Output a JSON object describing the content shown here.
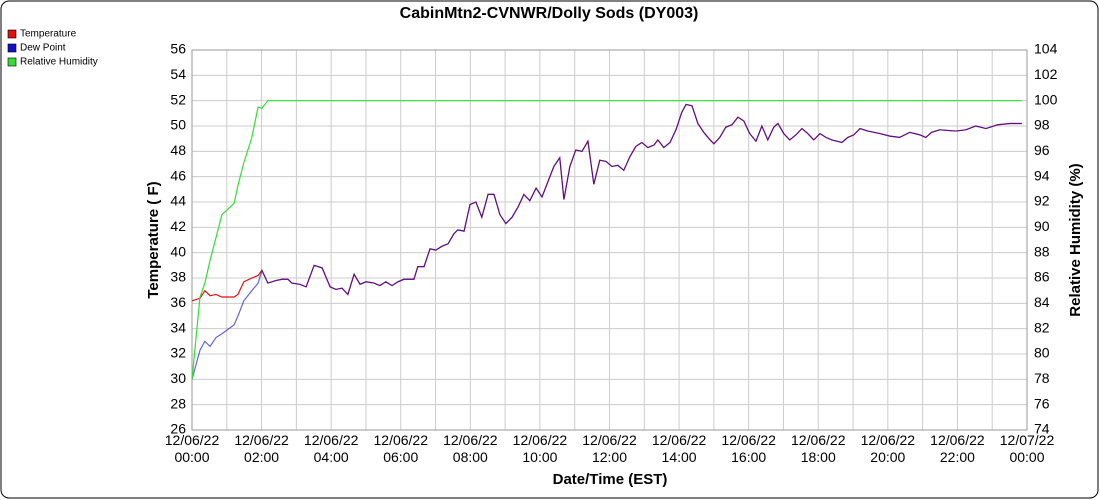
{
  "chart_data": {
    "type": "line",
    "title": "CabinMtn2-CVNWR/Dolly Sods (DY003)",
    "xlabel": "Date/Time (EST)",
    "ylabel": "Temperature ( F)",
    "y2label": "Relative Humidity (%)",
    "x": [
      0,
      0.23,
      0.37,
      0.52,
      0.69,
      0.86,
      1.21,
      1.32,
      1.49,
      1.72,
      1.9,
      2.01,
      2.18,
      2.41,
      2.59,
      2.76,
      2.87,
      3.1,
      3.28,
      3.51,
      3.74,
      3.97,
      4.14,
      4.31,
      4.48,
      4.66,
      4.83,
      5.0,
      5.23,
      5.4,
      5.57,
      5.75,
      5.92,
      6.09,
      6.38,
      6.49,
      6.67,
      6.84,
      7.01,
      7.18,
      7.36,
      7.53,
      7.64,
      7.82,
      7.99,
      8.16,
      8.33,
      8.51,
      8.68,
      8.85,
      9.02,
      9.2,
      9.37,
      9.54,
      9.71,
      9.89,
      10.06,
      10.23,
      10.4,
      10.57,
      10.69,
      10.86,
      11.03,
      11.21,
      11.38,
      11.55,
      11.72,
      11.9,
      12.07,
      12.24,
      12.41,
      12.59,
      12.76,
      12.93,
      13.1,
      13.28,
      13.39,
      13.56,
      13.74,
      13.91,
      14.08,
      14.2,
      14.37,
      14.54,
      14.71,
      14.89,
      15.0,
      15.17,
      15.34,
      15.52,
      15.69,
      15.86,
      16.03,
      16.21,
      16.38,
      16.55,
      16.72,
      16.84,
      17.01,
      17.18,
      17.36,
      17.53,
      17.7,
      17.87,
      18.05,
      18.22,
      18.39,
      18.68,
      18.85,
      19.02,
      19.2,
      19.43,
      19.77,
      20.06,
      20.34,
      20.63,
      20.92,
      21.09,
      21.26,
      21.49,
      21.95,
      22.24,
      22.53,
      22.82,
      23.16,
      23.51,
      23.85
    ],
    "series": [
      {
        "name": "Temperature",
        "color": "#dd1111",
        "values": [
          36.2,
          36.4,
          37.0,
          36.6,
          36.7,
          36.5,
          36.5,
          36.7,
          37.7,
          38.0,
          38.2,
          38.6,
          37.6,
          37.8,
          37.9,
          37.9,
          37.6,
          37.5,
          37.3,
          39.0,
          38.8,
          37.3,
          37.1,
          37.2,
          36.7,
          38.3,
          37.5,
          37.7,
          37.6,
          37.4,
          37.7,
          37.4,
          37.7,
          37.9,
          37.9,
          38.9,
          38.9,
          40.3,
          40.2,
          40.5,
          40.7,
          41.5,
          41.8,
          41.7,
          43.8,
          44.0,
          42.8,
          44.6,
          44.6,
          43.0,
          42.3,
          42.8,
          43.6,
          44.6,
          44.1,
          45.1,
          44.4,
          45.6,
          46.8,
          47.5,
          44.2,
          46.8,
          48.1,
          48.0,
          48.8,
          45.4,
          47.3,
          47.2,
          46.8,
          46.9,
          46.5,
          47.6,
          48.4,
          48.7,
          48.3,
          48.5,
          48.9,
          48.3,
          48.7,
          49.7,
          51.1,
          51.7,
          51.6,
          50.2,
          49.5,
          48.9,
          48.6,
          49.1,
          49.9,
          50.1,
          50.7,
          50.4,
          49.4,
          48.8,
          50.0,
          48.9,
          49.9,
          50.2,
          49.4,
          48.9,
          49.3,
          49.8,
          49.4,
          48.9,
          49.4,
          49.1,
          48.9,
          48.7,
          49.1,
          49.3,
          49.8,
          49.6,
          49.4,
          49.2,
          49.1,
          49.5,
          49.3,
          49.1,
          49.5,
          49.7,
          49.6,
          49.7,
          50.0,
          49.8,
          50.1,
          50.2,
          50.2
        ]
      },
      {
        "name": "Dew Point",
        "color": "#1111cc",
        "values": [
          30.0,
          32.3,
          33.0,
          32.6,
          33.3,
          33.6,
          34.3,
          35.0,
          36.2,
          37.0,
          37.6,
          38.6,
          37.6,
          37.8,
          37.9,
          37.9,
          37.6,
          37.5,
          37.3,
          39.0,
          38.8,
          37.3,
          37.1,
          37.2,
          36.7,
          38.3,
          37.5,
          37.7,
          37.6,
          37.4,
          37.7,
          37.4,
          37.7,
          37.9,
          37.9,
          38.9,
          38.9,
          40.3,
          40.2,
          40.5,
          40.7,
          41.5,
          41.8,
          41.7,
          43.8,
          44.0,
          42.8,
          44.6,
          44.6,
          43.0,
          42.3,
          42.8,
          43.6,
          44.6,
          44.1,
          45.1,
          44.4,
          45.6,
          46.8,
          47.5,
          44.2,
          46.8,
          48.1,
          48.0,
          48.8,
          45.4,
          47.3,
          47.2,
          46.8,
          46.9,
          46.5,
          47.6,
          48.4,
          48.7,
          48.3,
          48.5,
          48.9,
          48.3,
          48.7,
          49.7,
          51.1,
          51.7,
          51.6,
          50.2,
          49.5,
          48.9,
          48.6,
          49.1,
          49.9,
          50.1,
          50.7,
          50.4,
          49.4,
          48.8,
          50.0,
          48.9,
          49.9,
          50.2,
          49.4,
          48.9,
          49.3,
          49.8,
          49.4,
          48.9,
          49.4,
          49.1,
          48.9,
          48.7,
          49.1,
          49.3,
          49.8,
          49.6,
          49.4,
          49.2,
          49.1,
          49.5,
          49.3,
          49.1,
          49.5,
          49.7,
          49.6,
          49.7,
          50.0,
          49.8,
          50.1,
          50.2,
          50.2
        ]
      },
      {
        "name": "Relative Humidity",
        "color": "#33dd33",
        "axis": "y2",
        "values": [
          78.0,
          84.5,
          85.6,
          87.4,
          89.2,
          91.0,
          91.9,
          93.3,
          95.1,
          97.1,
          99.5,
          99.4,
          100,
          100,
          100,
          100,
          100,
          100,
          100,
          100,
          100,
          100,
          100,
          100,
          100,
          100,
          100,
          100,
          100,
          100,
          100,
          100,
          100,
          100,
          100,
          100,
          100,
          100,
          100,
          100,
          100,
          100,
          100,
          100,
          100,
          100,
          100,
          100,
          100,
          100,
          100,
          100,
          100,
          100,
          100,
          100,
          100,
          100,
          100,
          100,
          100,
          100,
          100,
          100,
          100,
          100,
          100,
          100,
          100,
          100,
          100,
          100,
          100,
          100,
          100,
          100,
          100,
          100,
          100,
          100,
          100,
          100,
          100,
          100,
          100,
          100,
          100,
          100,
          100,
          100,
          100,
          100,
          100,
          100,
          100,
          100,
          100,
          100,
          100,
          100,
          100,
          100,
          100,
          100,
          100,
          100,
          100,
          100,
          100,
          100,
          100,
          100,
          100,
          100,
          100,
          100,
          100,
          100,
          100,
          100,
          100,
          100,
          100,
          100,
          100,
          100,
          100
        ]
      }
    ],
    "xlim": [
      0,
      24
    ],
    "xticks": [
      {
        "value": 0,
        "label": "12/06/22 00:00"
      },
      {
        "value": 2,
        "label": "12/06/22 02:00"
      },
      {
        "value": 4,
        "label": "12/06/22 04:00"
      },
      {
        "value": 6,
        "label": "12/06/22 06:00"
      },
      {
        "value": 8,
        "label": "12/06/22 08:00"
      },
      {
        "value": 10,
        "label": "12/06/22 10:00"
      },
      {
        "value": 12,
        "label": "12/06/22 12:00"
      },
      {
        "value": 14,
        "label": "12/06/22 14:00"
      },
      {
        "value": 16,
        "label": "12/06/22 16:00"
      },
      {
        "value": 18,
        "label": "12/06/22 18:00"
      },
      {
        "value": 20,
        "label": "12/06/22 20:00"
      },
      {
        "value": 22,
        "label": "12/06/22 22:00"
      },
      {
        "value": 24,
        "label": "12/07/22 00:00"
      }
    ],
    "xminorticks": [
      1,
      3,
      5,
      7,
      9,
      11,
      13,
      15,
      17,
      19,
      21,
      23
    ],
    "ylim": [
      26,
      56
    ],
    "yticks": [
      26,
      28,
      30,
      32,
      34,
      36,
      38,
      40,
      42,
      44,
      46,
      48,
      50,
      52,
      54,
      56
    ],
    "y2lim": [
      74,
      104
    ],
    "y2ticks": [
      74,
      76,
      78,
      80,
      82,
      84,
      86,
      88,
      90,
      92,
      94,
      96,
      98,
      100,
      102,
      104
    ],
    "grid": true,
    "legend": "top-left"
  }
}
